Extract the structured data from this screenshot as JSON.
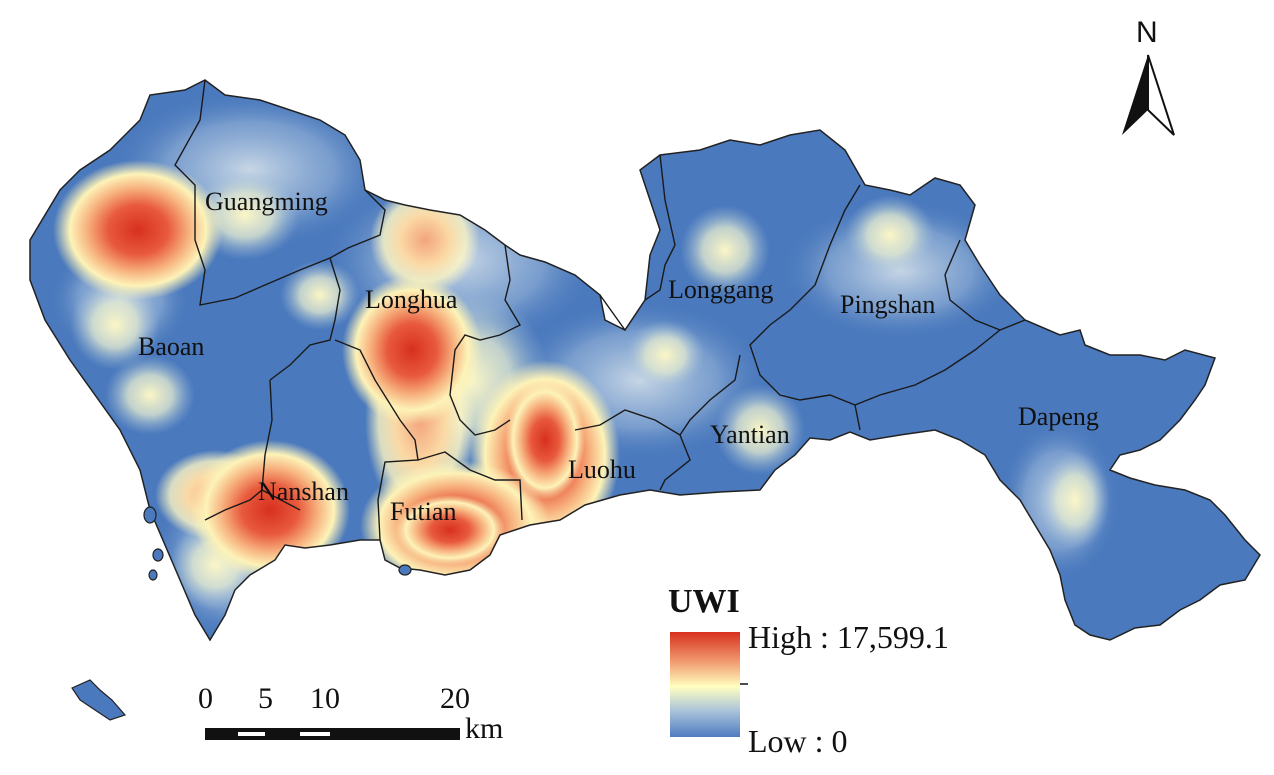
{
  "districts": {
    "guangming": "Guangming",
    "baoan": "Baoan",
    "longhua": "Longhua",
    "nanshan": "Nanshan",
    "futian": "Futian",
    "luohu": "Luohu",
    "longgang": "Longgang",
    "pingshan": "Pingshan",
    "yantian": "Yantian",
    "dapeng": "Dapeng"
  },
  "legend": {
    "title": "UWI",
    "high_label": "High : 17,599.1",
    "low_label": "Low : 0",
    "high_value": 17599.1,
    "low_value": 0,
    "colors": [
      "#d7301f",
      "#f4a582",
      "#ffffbf",
      "#92b6d6",
      "#4f7cbf"
    ]
  },
  "scale_bar": {
    "ticks": [
      "0",
      "5",
      "10",
      "20"
    ],
    "unit": "km"
  },
  "north_arrow": {
    "label": "N",
    "icon": "north-arrow-icon"
  },
  "palette": {
    "background_blue": "#4a79bd",
    "hot_red": "#d7301f",
    "boundary": "#222222"
  }
}
